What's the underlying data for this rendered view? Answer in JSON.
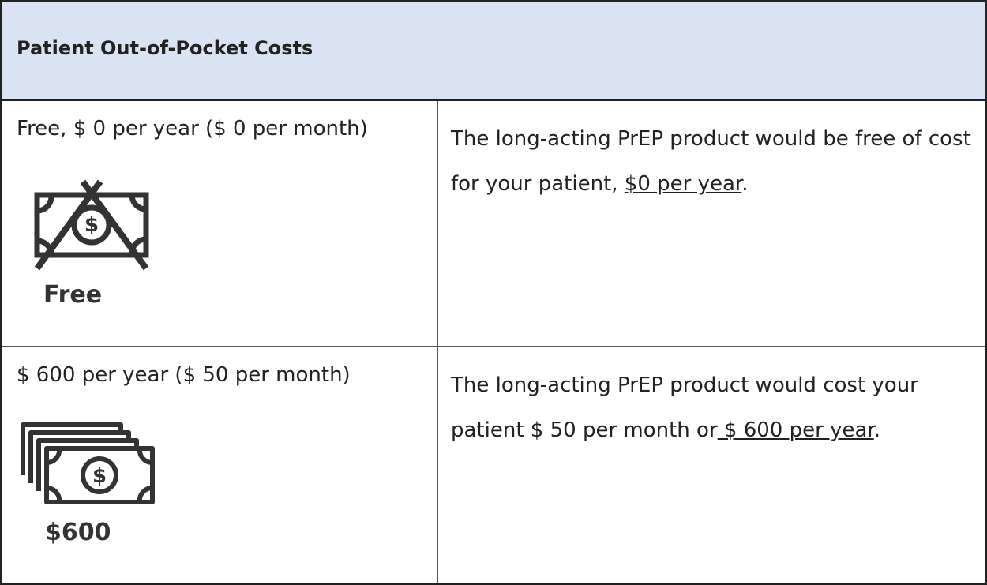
{
  "table": {
    "title": "Patient Out-of-Pocket Costs",
    "rows": [
      {
        "option": "Free, $ 0 per year ($ 0 per month)",
        "icon_label": "Free",
        "description": {
          "text": "The long-acting PrEP product would be free of cost for your patient, ",
          "underlined": "$0 per year",
          "tail": "."
        }
      },
      {
        "option": "$ 600 per year ($ 50 per month)",
        "icon_label": "$600",
        "description": {
          "text": "The long-acting PrEP product would cost your patient $ 50 per month or",
          "underlined": " $ 600 per year",
          "tail": "."
        }
      }
    ]
  }
}
